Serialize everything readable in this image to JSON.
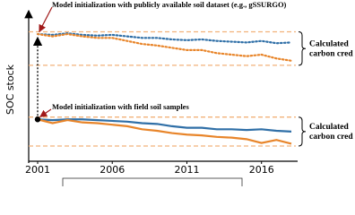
{
  "chart_data": {
    "type": "line",
    "y_label": "SOC stock",
    "x": [
      2001,
      2002,
      2003,
      2004,
      2005,
      2006,
      2007,
      2008,
      2009,
      2010,
      2011,
      2012,
      2013,
      2014,
      2015,
      2016,
      2017,
      2018
    ],
    "series": [
      {
        "color": "#2f6fa7",
        "style": "dotted",
        "values": [
          8.35,
          8.3,
          8.4,
          8.3,
          8.25,
          8.3,
          8.2,
          8.1,
          8.1,
          8.0,
          7.95,
          8.0,
          7.9,
          7.85,
          7.8,
          7.9,
          7.75,
          7.8
        ]
      },
      {
        "color": "#e8852a",
        "style": "dotted",
        "values": [
          8.35,
          8.2,
          8.35,
          8.2,
          8.1,
          8.1,
          7.9,
          7.7,
          7.6,
          7.45,
          7.3,
          7.3,
          7.1,
          7.0,
          6.9,
          7.0,
          6.75,
          6.6
        ]
      },
      {
        "color": "#2f6fa7",
        "style": "solid",
        "values": [
          2.75,
          2.7,
          2.75,
          2.75,
          2.7,
          2.65,
          2.6,
          2.5,
          2.45,
          2.3,
          2.2,
          2.2,
          2.1,
          2.1,
          2.05,
          2.1,
          2.0,
          1.95
        ]
      },
      {
        "color": "#e8852a",
        "style": "solid",
        "values": [
          2.75,
          2.5,
          2.7,
          2.55,
          2.5,
          2.4,
          2.3,
          2.1,
          2.0,
          1.85,
          1.75,
          1.7,
          1.6,
          1.55,
          1.45,
          1.2,
          1.4,
          1.15
        ]
      }
    ],
    "reference_lines": [
      8.5,
      6.3,
      2.9,
      1.0
    ],
    "reference_color": "#f2b27a",
    "start_point": 2.75,
    "xlim": [
      2000.4,
      2018.3
    ],
    "xticks": [
      2001,
      2006,
      2011,
      2016
    ],
    "ylim": [
      0,
      10
    ],
    "annotations": [
      {
        "text": "Model initialization with publicly available soil dataset (e.g., gSSURGO)"
      },
      {
        "text": "Model initialization with field soil samples"
      }
    ],
    "brace_labels": [
      [
        "Calculated",
        "carbon cred"
      ],
      [
        "Calculated",
        "carbon cred"
      ]
    ]
  }
}
